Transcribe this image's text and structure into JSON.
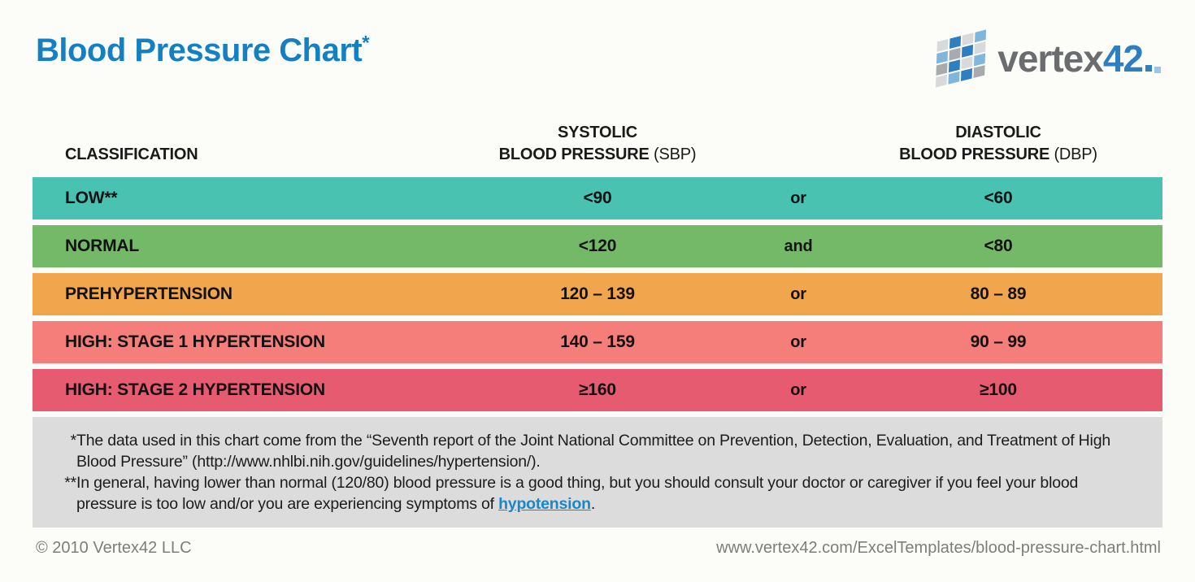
{
  "page": {
    "title": "Blood Pressure Chart",
    "title_marker": "*"
  },
  "logo": {
    "brand_word": "vertex",
    "brand_number": "42"
  },
  "table": {
    "columns": {
      "classification": {
        "label": "CLASSIFICATION"
      },
      "systolic": {
        "line1": "SYSTOLIC",
        "line2_bold": "BLOOD PRESSURE",
        "line2_plain": "(SBP)"
      },
      "diastolic": {
        "line1": "DIASTOLIC",
        "line2_bold": "BLOOD PRESSURE",
        "line2_plain": "(DBP)"
      }
    },
    "rows": [
      {
        "classification": "LOW**",
        "sbp": "<90",
        "connector": "or",
        "dbp": "<60",
        "color": "#4ac2b2"
      },
      {
        "classification": "NORMAL",
        "sbp": "<120",
        "connector": "and",
        "dbp": "<80",
        "color": "#74b967"
      },
      {
        "classification": "PREHYPERTENSION",
        "sbp": "120 – 139",
        "connector": "or",
        "dbp": "80 – 89",
        "color": "#f1a64d"
      },
      {
        "classification": "HIGH: STAGE 1 HYPERTENSION",
        "sbp": "140 – 159",
        "connector": "or",
        "dbp": "90 – 99",
        "color": "#f57e7b"
      },
      {
        "classification": "HIGH: STAGE 2 HYPERTENSION",
        "sbp": "≥160",
        "connector": "or",
        "dbp": "≥100",
        "color": "#e65b6f"
      }
    ]
  },
  "footnotes": {
    "note1_marker": "*",
    "note1_text": "The data used in this chart come from the “Seventh report of the Joint National Committee on Prevention, Detection, Evaluation, and Treatment of High Blood Pressure” (http://www.nhlbi.nih.gov/guidelines/hypertension/).",
    "note2_marker": "**",
    "note2_before_link": "In general, having lower than normal (120/80) blood pressure is a good thing, but you should consult your doctor or caregiver if you feel your blood pressure is too low and/or you are experiencing symptoms of ",
    "note2_link": "hypotension",
    "note2_after_link": "."
  },
  "footer": {
    "copyright": "© 2010 Vertex42 LLC",
    "url": "www.vertex42.com/ExcelTemplates/blood-pressure-chart.html"
  },
  "colors": {
    "title_blue": "#1380c4",
    "link_blue": "#1b86c8",
    "footnote_background": "#dcdcdc",
    "footer_gray": "#7d7d7d"
  }
}
